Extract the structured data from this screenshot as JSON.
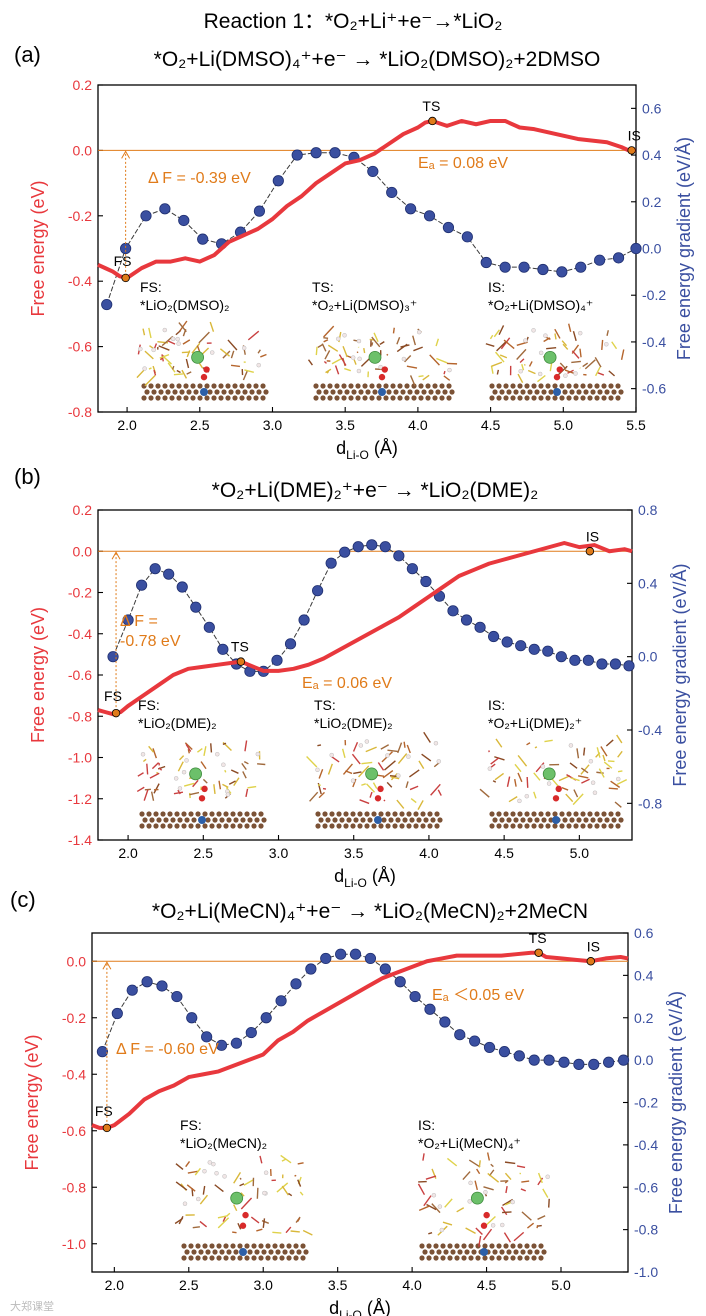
{
  "figure_title": "Reaction 1：*O₂+Li⁺+e⁻→*LiO₂",
  "watermark": "大郑课堂",
  "colors": {
    "energy": "#e8383d",
    "gradient": "#3a4fa0",
    "annotation": "#e07b1a"
  },
  "chart_data": [
    {
      "panel": "(a)",
      "type": "line",
      "title": "*O₂+Li(DMSO)₄⁺+e⁻ → *LiO₂(DMSO)₂+2DMSO",
      "xlabel": "d_Li-O (Å)",
      "ylabel_left": "Free energy (eV)",
      "ylabel_right": "Free energy gradient (eV/Å)",
      "xlim": [
        1.8,
        5.5
      ],
      "ylim_left": [
        -0.8,
        0.2
      ],
      "ylim_right": [
        -0.7,
        0.7
      ],
      "xticks": [
        "2.0",
        "2.5",
        "3.0",
        "3.5",
        "4.0",
        "4.5",
        "5.0",
        "5.5"
      ],
      "yticks_left": [
        "0.2",
        "0.0",
        "-0.2",
        "-0.4",
        "-0.6",
        "-0.8"
      ],
      "yticks_right": [
        "0.6",
        "0.4",
        "0.2",
        "0.0",
        "-0.2",
        "-0.4",
        "-0.6"
      ],
      "energy": {
        "x": [
          1.8,
          1.85,
          1.9,
          1.95,
          2.0,
          2.1,
          2.2,
          2.3,
          2.4,
          2.5,
          2.6,
          2.7,
          2.8,
          2.9,
          3.0,
          3.1,
          3.2,
          3.3,
          3.4,
          3.5,
          3.6,
          3.7,
          3.8,
          3.9,
          4.0,
          4.05,
          4.1,
          4.2,
          4.3,
          4.4,
          4.5,
          4.6,
          4.7,
          4.8,
          4.9,
          5.0,
          5.1,
          5.2,
          5.3,
          5.4,
          5.45,
          5.5
        ],
        "y": [
          -0.35,
          -0.36,
          -0.37,
          -0.385,
          -0.39,
          -0.36,
          -0.34,
          -0.34,
          -0.33,
          -0.34,
          -0.32,
          -0.28,
          -0.26,
          -0.24,
          -0.21,
          -0.17,
          -0.14,
          -0.1,
          -0.07,
          -0.04,
          -0.03,
          -0.01,
          0.02,
          0.05,
          0.07,
          0.085,
          0.09,
          0.075,
          0.09,
          0.08,
          0.09,
          0.09,
          0.07,
          0.065,
          0.055,
          0.045,
          0.035,
          0.03,
          0.025,
          0.01,
          0.0,
          0.0
        ]
      },
      "gradient": {
        "x": [
          1.86,
          1.99,
          2.13,
          2.26,
          2.39,
          2.52,
          2.65,
          2.78,
          2.91,
          3.04,
          3.17,
          3.3,
          3.43,
          3.56,
          3.69,
          3.82,
          3.95,
          4.08,
          4.21,
          4.34,
          4.47,
          4.6,
          4.73,
          4.86,
          4.99,
          5.12,
          5.25,
          5.38,
          5.5
        ],
        "y": [
          -0.24,
          0.0,
          0.14,
          0.17,
          0.12,
          0.04,
          0.02,
          0.07,
          0.16,
          0.29,
          0.4,
          0.41,
          0.41,
          0.39,
          0.33,
          0.24,
          0.17,
          0.14,
          0.09,
          0.05,
          -0.06,
          -0.08,
          -0.08,
          -0.09,
          -0.1,
          -0.08,
          -0.05,
          -0.04,
          0.0
        ]
      },
      "baseline": 0.0,
      "marked_states": [
        {
          "label": "FS",
          "x": 1.99,
          "y": -0.39
        },
        {
          "label": "TS",
          "x": 4.1,
          "y": 0.09
        },
        {
          "label": "IS",
          "x": 5.47,
          "y": 0.0
        }
      ],
      "delta_f": "Δ F = -0.39 eV",
      "activation": "Eₐ = 0.08 eV",
      "structures": [
        {
          "label": "FS:",
          "formula": "*LiO₂(DMSO)₂"
        },
        {
          "label": "TS:",
          "formula": "*O₂+Li(DMSO)₃⁺"
        },
        {
          "label": "IS:",
          "formula": "*O₂+Li(DMSO)₄⁺"
        }
      ]
    },
    {
      "panel": "(b)",
      "type": "line",
      "title": "*O₂+Li(DME)₂⁺+e⁻ → *LiO₂(DME)₂",
      "xlabel": "d_Li-O (Å)",
      "ylabel_left": "Free energy (eV)",
      "ylabel_right": "Free energy gradient (eV/Å)",
      "xlim": [
        1.8,
        5.35
      ],
      "ylim_left": [
        -1.4,
        0.2
      ],
      "ylim_right": [
        -1.0,
        0.8
      ],
      "xticks": [
        "2.0",
        "2.5",
        "3.0",
        "3.5",
        "4.0",
        "4.5",
        "5.0"
      ],
      "yticks_left": [
        "0.2",
        "0.0",
        "-0.2",
        "-0.4",
        "-0.6",
        "-0.8",
        "-1.0",
        "-1.2",
        "-1.4"
      ],
      "yticks_right": [
        "0.8",
        "0.4",
        "0.0",
        "-0.4",
        "-0.8"
      ],
      "energy": {
        "x": [
          1.8,
          1.85,
          1.9,
          1.95,
          2.0,
          2.1,
          2.2,
          2.3,
          2.4,
          2.5,
          2.6,
          2.7,
          2.75,
          2.8,
          2.9,
          3.0,
          3.1,
          3.2,
          3.3,
          3.4,
          3.5,
          3.6,
          3.7,
          3.8,
          3.9,
          4.0,
          4.1,
          4.2,
          4.3,
          4.4,
          4.5,
          4.6,
          4.7,
          4.8,
          4.9,
          5.0,
          5.1,
          5.2,
          5.3,
          5.35
        ],
        "y": [
          -0.77,
          -0.78,
          -0.79,
          -0.78,
          -0.75,
          -0.7,
          -0.65,
          -0.6,
          -0.57,
          -0.56,
          -0.55,
          -0.54,
          -0.535,
          -0.55,
          -0.58,
          -0.58,
          -0.57,
          -0.55,
          -0.52,
          -0.48,
          -0.44,
          -0.4,
          -0.36,
          -0.32,
          -0.27,
          -0.22,
          -0.17,
          -0.12,
          -0.09,
          -0.06,
          -0.04,
          -0.02,
          0.0,
          0.02,
          0.04,
          0.02,
          0.03,
          0.0,
          0.01,
          0.0
        ]
      },
      "gradient": {
        "x": [
          1.9,
          2.0,
          2.09,
          2.18,
          2.27,
          2.36,
          2.45,
          2.54,
          2.63,
          2.72,
          2.81,
          2.9,
          2.99,
          3.08,
          3.17,
          3.26,
          3.35,
          3.44,
          3.53,
          3.62,
          3.71,
          3.8,
          3.89,
          3.98,
          4.07,
          4.16,
          4.25,
          4.34,
          4.43,
          4.52,
          4.61,
          4.7,
          4.79,
          4.88,
          4.97,
          5.06,
          5.15,
          5.24,
          5.33
        ],
        "y": [
          0.0,
          0.2,
          0.39,
          0.48,
          0.45,
          0.38,
          0.27,
          0.16,
          0.04,
          -0.04,
          -0.08,
          -0.08,
          -0.02,
          0.07,
          0.2,
          0.36,
          0.51,
          0.57,
          0.6,
          0.61,
          0.6,
          0.55,
          0.48,
          0.41,
          0.33,
          0.25,
          0.2,
          0.16,
          0.11,
          0.08,
          0.06,
          0.04,
          0.03,
          0.0,
          -0.02,
          -0.02,
          -0.04,
          -0.04,
          -0.05
        ]
      },
      "baseline": 0.0,
      "marked_states": [
        {
          "label": "FS",
          "x": 1.92,
          "y": -0.785
        },
        {
          "label": "TS",
          "x": 2.75,
          "y": -0.535
        },
        {
          "label": "IS",
          "x": 5.07,
          "y": 0.0
        }
      ],
      "delta_f": [
        "Δ F =",
        "-0.78 eV"
      ],
      "activation": "Eₐ = 0.06 eV",
      "structures": [
        {
          "label": "FS:",
          "formula": "*LiO₂(DME)₂"
        },
        {
          "label": "TS:",
          "formula": "*LiO₂(DME)₂"
        },
        {
          "label": "IS:",
          "formula": "*O₂+Li(DME)₂⁺"
        }
      ]
    },
    {
      "panel": "(c)",
      "type": "line",
      "title": "*O₂+Li(MeCN)₄⁺+e⁻ → *LiO₂(MeCN)₂+2MeCN",
      "xlabel": "d_Li-O (Å)",
      "ylabel_left": "Free energy (eV)",
      "ylabel_right": "Free energy gradient (eV/Å)",
      "xlim": [
        1.85,
        5.45
      ],
      "ylim_left": [
        -1.1,
        0.1
      ],
      "ylim_right": [
        -1.0,
        0.6
      ],
      "xticks": [
        "2.0",
        "2.5",
        "3.0",
        "3.5",
        "4.0",
        "4.5",
        "5.0"
      ],
      "yticks_left": [
        "0.0",
        "-0.2",
        "-0.4",
        "-0.6",
        "-0.8",
        "-1.0"
      ],
      "yticks_right": [
        "0.6",
        "0.4",
        "0.2",
        "0.0",
        "-0.2",
        "-0.4",
        "-0.6",
        "-0.8",
        "-1.0"
      ],
      "energy": {
        "x": [
          1.85,
          1.9,
          1.95,
          2.0,
          2.1,
          2.2,
          2.3,
          2.4,
          2.5,
          2.6,
          2.7,
          2.8,
          2.9,
          3.0,
          3.1,
          3.2,
          3.3,
          3.4,
          3.5,
          3.6,
          3.7,
          3.8,
          3.9,
          4.0,
          4.1,
          4.2,
          4.3,
          4.4,
          4.5,
          4.6,
          4.7,
          4.8,
          4.85,
          4.9,
          5.0,
          5.1,
          5.2,
          5.3,
          5.4,
          5.45
        ],
        "y": [
          -0.58,
          -0.59,
          -0.59,
          -0.58,
          -0.54,
          -0.49,
          -0.46,
          -0.44,
          -0.41,
          -0.4,
          -0.39,
          -0.37,
          -0.35,
          -0.33,
          -0.28,
          -0.25,
          -0.21,
          -0.18,
          -0.15,
          -0.12,
          -0.09,
          -0.06,
          -0.04,
          -0.02,
          0.0,
          0.01,
          0.02,
          0.02,
          0.02,
          0.02,
          0.025,
          0.03,
          0.03,
          0.015,
          0.01,
          0.005,
          0.0,
          0.01,
          0.015,
          0.01
        ]
      },
      "gradient": {
        "x": [
          1.92,
          2.02,
          2.12,
          2.22,
          2.32,
          2.42,
          2.52,
          2.62,
          2.72,
          2.82,
          2.92,
          3.02,
          3.12,
          3.22,
          3.32,
          3.42,
          3.52,
          3.62,
          3.72,
          3.82,
          3.92,
          4.02,
          4.12,
          4.22,
          4.32,
          4.42,
          4.52,
          4.62,
          4.72,
          4.82,
          4.92,
          5.02,
          5.12,
          5.22,
          5.32,
          5.42
        ],
        "y": [
          0.04,
          0.22,
          0.33,
          0.37,
          0.35,
          0.3,
          0.2,
          0.11,
          0.07,
          0.08,
          0.13,
          0.2,
          0.28,
          0.36,
          0.43,
          0.48,
          0.5,
          0.5,
          0.48,
          0.43,
          0.37,
          0.3,
          0.24,
          0.18,
          0.12,
          0.09,
          0.06,
          0.04,
          0.02,
          0.0,
          0.0,
          -0.01,
          -0.02,
          -0.02,
          -0.01,
          0.0
        ]
      },
      "baseline": 0.0,
      "marked_states": [
        {
          "label": "FS",
          "x": 1.95,
          "y": -0.59
        },
        {
          "label": "TS",
          "x": 4.85,
          "y": 0.03
        },
        {
          "label": "IS",
          "x": 5.2,
          "y": 0.0
        }
      ],
      "delta_f": "Δ F = -0.60 eV",
      "activation": "Eₐ ＜0.05 eV",
      "structures": [
        {
          "label": "FS:",
          "formula": "*LiO₂(MeCN)₂"
        },
        {
          "label": "IS:",
          "formula": "*O₂+Li(MeCN)₄⁺"
        }
      ]
    }
  ]
}
